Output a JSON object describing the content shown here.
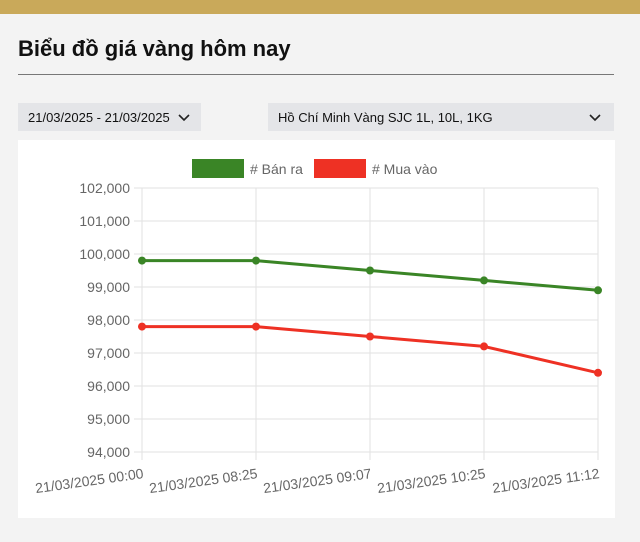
{
  "page": {
    "title": "Biểu đồ giá vàng hôm nay"
  },
  "filters": {
    "date_range": "21/03/2025 - 21/03/2025",
    "region_product": "Hồ Chí Minh Vàng SJC 1L, 10L, 1KG"
  },
  "colors": {
    "sell": "#3a8526",
    "buy": "#ee3124",
    "accent": "#c9a95a"
  },
  "chart_data": {
    "type": "line",
    "categories": [
      "21/03/2025 00:00",
      "21/03/2025 08:25",
      "21/03/2025 09:07",
      "21/03/2025 10:25",
      "21/03/2025 11:12"
    ],
    "series": [
      {
        "name": "# Bán ra",
        "color": "#3a8526",
        "values": [
          99800,
          99800,
          99500,
          99200,
          98900
        ]
      },
      {
        "name": "# Mua vào",
        "color": "#ee3124",
        "values": [
          97800,
          97800,
          97500,
          97200,
          96400
        ]
      }
    ],
    "ylim": [
      94000,
      102000
    ],
    "yticks": [
      "94,000",
      "95,000",
      "96,000",
      "97,000",
      "98,000",
      "99,000",
      "100,000",
      "101,000",
      "102,000"
    ],
    "grid": true,
    "legend": "top"
  }
}
